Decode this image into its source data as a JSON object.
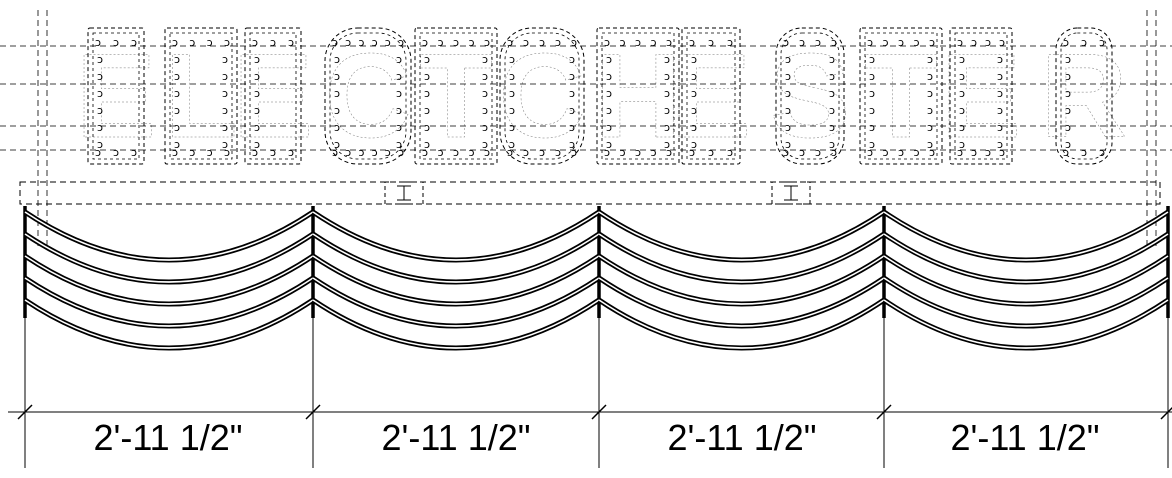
{
  "drawing": {
    "sign_text": "ELECTCHESTER",
    "line_color": "#000000",
    "background": "#ffffff",
    "outline_style": "dashed",
    "bulb_symbol": "ↄ"
  },
  "dimensions": [
    {
      "label": "2'-11 1/2\""
    },
    {
      "label": "2'-11 1/2\""
    },
    {
      "label": "2'-11 1/2\""
    },
    {
      "label": "2'-11 1/2\""
    }
  ]
}
